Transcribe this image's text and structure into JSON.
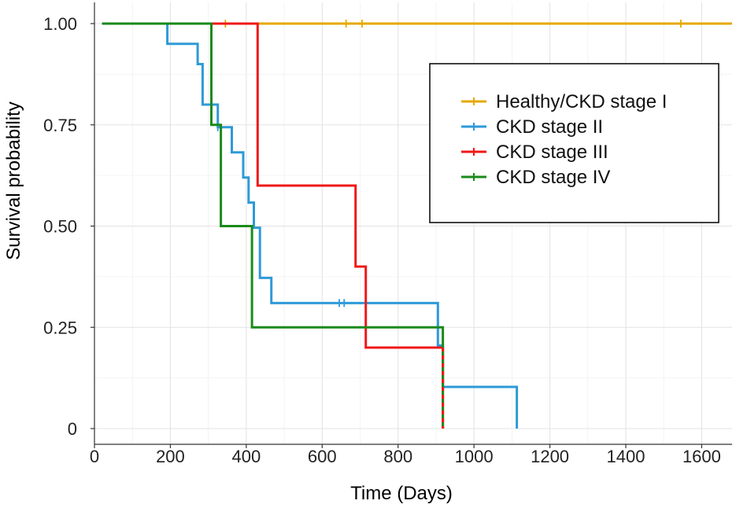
{
  "chart_data": {
    "type": "line",
    "subtype": "kaplan-meier step survival curves",
    "title": "",
    "xlabel": "Time (Days)",
    "ylabel": "Survival probability",
    "xlim": [
      0,
      1680
    ],
    "ylim": [
      0,
      1.0
    ],
    "x_ticks": [
      0,
      200,
      400,
      600,
      800,
      1000,
      1200,
      1400,
      1600
    ],
    "y_ticks": [
      {
        "value": 0,
        "label": "0"
      },
      {
        "value": 0.25,
        "label": "0.25"
      },
      {
        "value": 0.5,
        "label": "0.50"
      },
      {
        "value": 0.75,
        "label": "0.75"
      },
      {
        "value": 1.0,
        "label": "1.00"
      }
    ],
    "grid": true,
    "legend_position": "top-right",
    "series": [
      {
        "name": "Healthy/CKD stage I",
        "color": "#E6A800",
        "steps": [
          [
            20,
            1.0
          ],
          [
            1680,
            1.0
          ]
        ],
        "censored": [
          [
            345,
            1.0
          ],
          [
            663,
            1.0
          ],
          [
            705,
            1.0
          ],
          [
            1545,
            1.0
          ]
        ]
      },
      {
        "name": "CKD stage II",
        "color": "#2E9AD8",
        "steps": [
          [
            20,
            1.0
          ],
          [
            192,
            1.0
          ],
          [
            192,
            0.95
          ],
          [
            272,
            0.95
          ],
          [
            272,
            0.9
          ],
          [
            285,
            0.9
          ],
          [
            285,
            0.8
          ],
          [
            325,
            0.8
          ],
          [
            325,
            0.744
          ],
          [
            362,
            0.744
          ],
          [
            362,
            0.682
          ],
          [
            392,
            0.682
          ],
          [
            392,
            0.62
          ],
          [
            406,
            0.62
          ],
          [
            406,
            0.558
          ],
          [
            420,
            0.558
          ],
          [
            420,
            0.496
          ],
          [
            436,
            0.496
          ],
          [
            436,
            0.372
          ],
          [
            466,
            0.372
          ],
          [
            466,
            0.31
          ],
          [
            905,
            0.31
          ],
          [
            905,
            0.205
          ],
          [
            918,
            0.205
          ],
          [
            918,
            0.103
          ],
          [
            1113,
            0.103
          ],
          [
            1113,
            0.0
          ]
        ],
        "censored": [
          [
            325,
            0.744
          ],
          [
            645,
            0.31
          ],
          [
            658,
            0.31
          ]
        ]
      },
      {
        "name": "CKD stage III",
        "color": "#F01818",
        "steps": [
          [
            20,
            1.0
          ],
          [
            430,
            1.0
          ],
          [
            430,
            0.6
          ],
          [
            688,
            0.6
          ],
          [
            688,
            0.4
          ],
          [
            715,
            0.4
          ],
          [
            715,
            0.2
          ],
          [
            918,
            0.2
          ],
          [
            918,
            0.0
          ]
        ],
        "censored": []
      },
      {
        "name": "CKD stage IV",
        "color": "#1A8A1A",
        "steps": [
          [
            20,
            1.0
          ],
          [
            308,
            1.0
          ],
          [
            308,
            0.75
          ],
          [
            333,
            0.75
          ],
          [
            333,
            0.5
          ],
          [
            415,
            0.5
          ],
          [
            415,
            0.25
          ],
          [
            918,
            0.25
          ],
          [
            918,
            0.0
          ]
        ],
        "censored": []
      }
    ]
  }
}
